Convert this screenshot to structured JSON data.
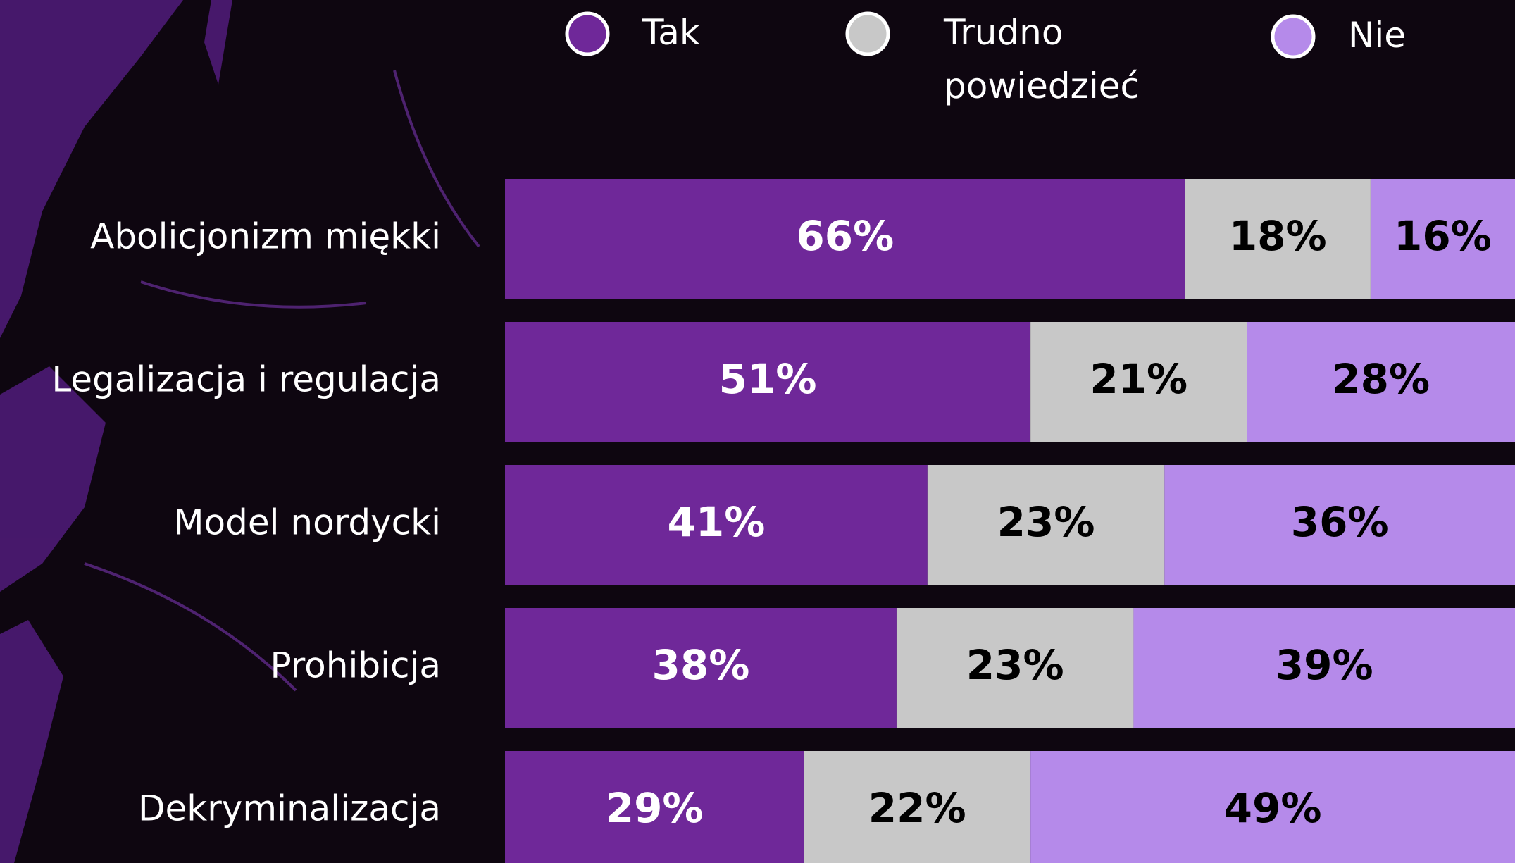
{
  "chart_data": {
    "type": "stacked_barh",
    "categories": [
      "Abolicjonizm miękki",
      "Legalizacja i regulacja",
      "Model nordycki",
      "Prohibicja",
      "Dekryminalizacja"
    ],
    "xlim": [
      0,
      100
    ],
    "series": [
      {
        "name": "Tak",
        "color": "#6f2899",
        "label_color": "#ffffff",
        "values": [
          66,
          51,
          41,
          38,
          29
        ],
        "value_labels": [
          "66%",
          "51%",
          "41%",
          "38%",
          "29%"
        ]
      },
      {
        "name": "Trudno powiedzieć",
        "color": "#c8c8c8",
        "label_color": "#000000",
        "values": [
          18,
          21,
          23,
          23,
          22
        ],
        "value_labels": [
          "18%",
          "21%",
          "23%",
          "23%",
          "22%"
        ]
      },
      {
        "name": "Nie",
        "color": "#b58aea",
        "label_color": "#000000",
        "values": [
          16,
          28,
          36,
          39,
          49
        ],
        "value_labels": [
          "16%",
          "28%",
          "36%",
          "39%",
          "49%"
        ]
      }
    ]
  }
}
